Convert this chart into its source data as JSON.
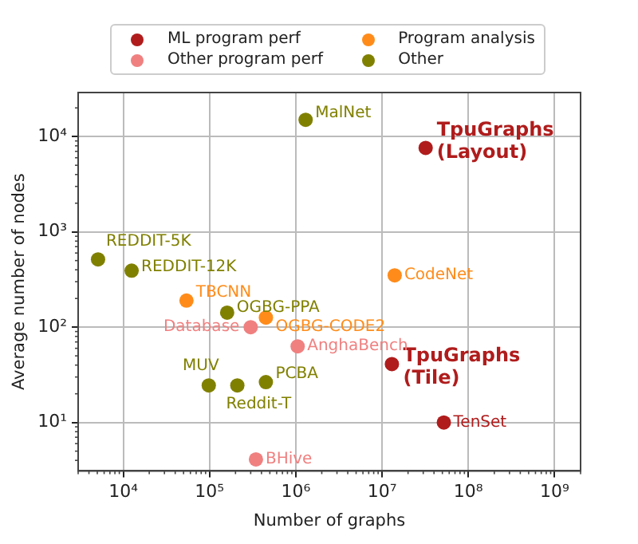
{
  "chart_data": {
    "type": "scatter",
    "xlabel": "Number of graphs",
    "ylabel": "Average number of nodes",
    "log": "xy",
    "grid": true,
    "legend": "top",
    "marker": "circle",
    "xlim": [
      3000,
      2000000000
    ],
    "ylim": [
      3.1,
      29000
    ],
    "xticks": [
      {
        "value": 10000,
        "label": "10⁴"
      },
      {
        "value": 100000,
        "label": "10⁵"
      },
      {
        "value": 1000000,
        "label": "10⁶"
      },
      {
        "value": 10000000,
        "label": "10⁷"
      },
      {
        "value": 100000000,
        "label": "10⁸"
      },
      {
        "value": 1000000000,
        "label": "10⁹"
      }
    ],
    "yticks": [
      {
        "value": 10,
        "label": "10¹"
      },
      {
        "value": 100,
        "label": "10²"
      },
      {
        "value": 1000,
        "label": "10³"
      },
      {
        "value": 10000,
        "label": "10⁴"
      }
    ],
    "series": [
      {
        "name": "ML program perf",
        "color": "#b01c1c",
        "x": [
          32000000,
          13000000,
          52000000
        ],
        "values": [
          7600,
          41,
          10
        ]
      },
      {
        "name": "Other program perf",
        "color": "#f08080",
        "x": [
          300000,
          1050000,
          345000
        ],
        "values": [
          100,
          63,
          4.1
        ]
      },
      {
        "name": "Program analysis",
        "color": "#ff8c1a",
        "x": [
          54000,
          450000,
          14000000
        ],
        "values": [
          190,
          126,
          350
        ]
      },
      {
        "name": "Other",
        "color": "#808000",
        "x": [
          1300000,
          5100,
          12500,
          160000,
          98000,
          210000,
          450000
        ],
        "values": [
          15000,
          515,
          392,
          142,
          24.5,
          24.5,
          26.5
        ]
      }
    ],
    "annotations": [
      {
        "text": "TpuGraphs\n(Layout)",
        "x": 32000000,
        "y": 7600
      },
      {
        "text": "TpuGraphs\n(Tile)",
        "x": 13000000,
        "y": 41
      },
      {
        "text": "TenSet",
        "x": 52000000,
        "y": 10
      },
      {
        "text": "Database",
        "x": 300000,
        "y": 100
      },
      {
        "text": "AnghaBench",
        "x": 1050000,
        "y": 63
      },
      {
        "text": "BHive",
        "x": 345000,
        "y": 4.1
      },
      {
        "text": "TBCNN",
        "x": 54000,
        "y": 190
      },
      {
        "text": "OGBG-CODE2",
        "x": 450000,
        "y": 126
      },
      {
        "text": "CodeNet",
        "x": 14000000,
        "y": 350
      },
      {
        "text": "MalNet",
        "x": 1300000,
        "y": 15000
      },
      {
        "text": "REDDIT-5K",
        "x": 5100,
        "y": 515
      },
      {
        "text": "REDDIT-12K",
        "x": 12500,
        "y": 392
      },
      {
        "text": "OGBG-PPA",
        "x": 160000,
        "y": 142
      },
      {
        "text": "MUV",
        "x": 98000,
        "y": 24.5
      },
      {
        "text": "Reddit-T",
        "x": 210000,
        "y": 24.5
      },
      {
        "text": "PCBA",
        "x": 450000,
        "y": 26.5
      }
    ]
  }
}
